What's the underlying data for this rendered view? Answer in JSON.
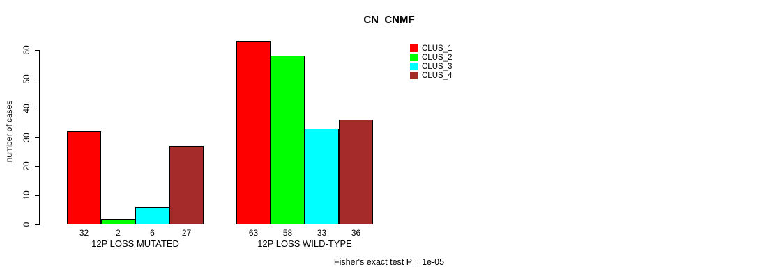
{
  "chart_data": {
    "type": "bar",
    "title": "CN_CNMF",
    "ylabel": "number of cases",
    "ylim": [
      0,
      63
    ],
    "yticks": [
      0,
      10,
      20,
      30,
      40,
      50,
      60
    ],
    "grid": false,
    "legend_position": "top-right",
    "bar_value_labels": true,
    "categories": [
      "12P LOSS MUTATED",
      "12P LOSS WILD-TYPE"
    ],
    "series": [
      {
        "name": "CLUS_1",
        "color": "#ff0000",
        "values": [
          32,
          63
        ]
      },
      {
        "name": "CLUS_2",
        "color": "#00ff00",
        "values": [
          2,
          58
        ]
      },
      {
        "name": "CLUS_3",
        "color": "#00ffff",
        "values": [
          6,
          33
        ]
      },
      {
        "name": "CLUS_4",
        "color": "#a52a2a",
        "values": [
          27,
          36
        ]
      }
    ],
    "annotation": "Fisher's exact test P = 1e-05"
  }
}
